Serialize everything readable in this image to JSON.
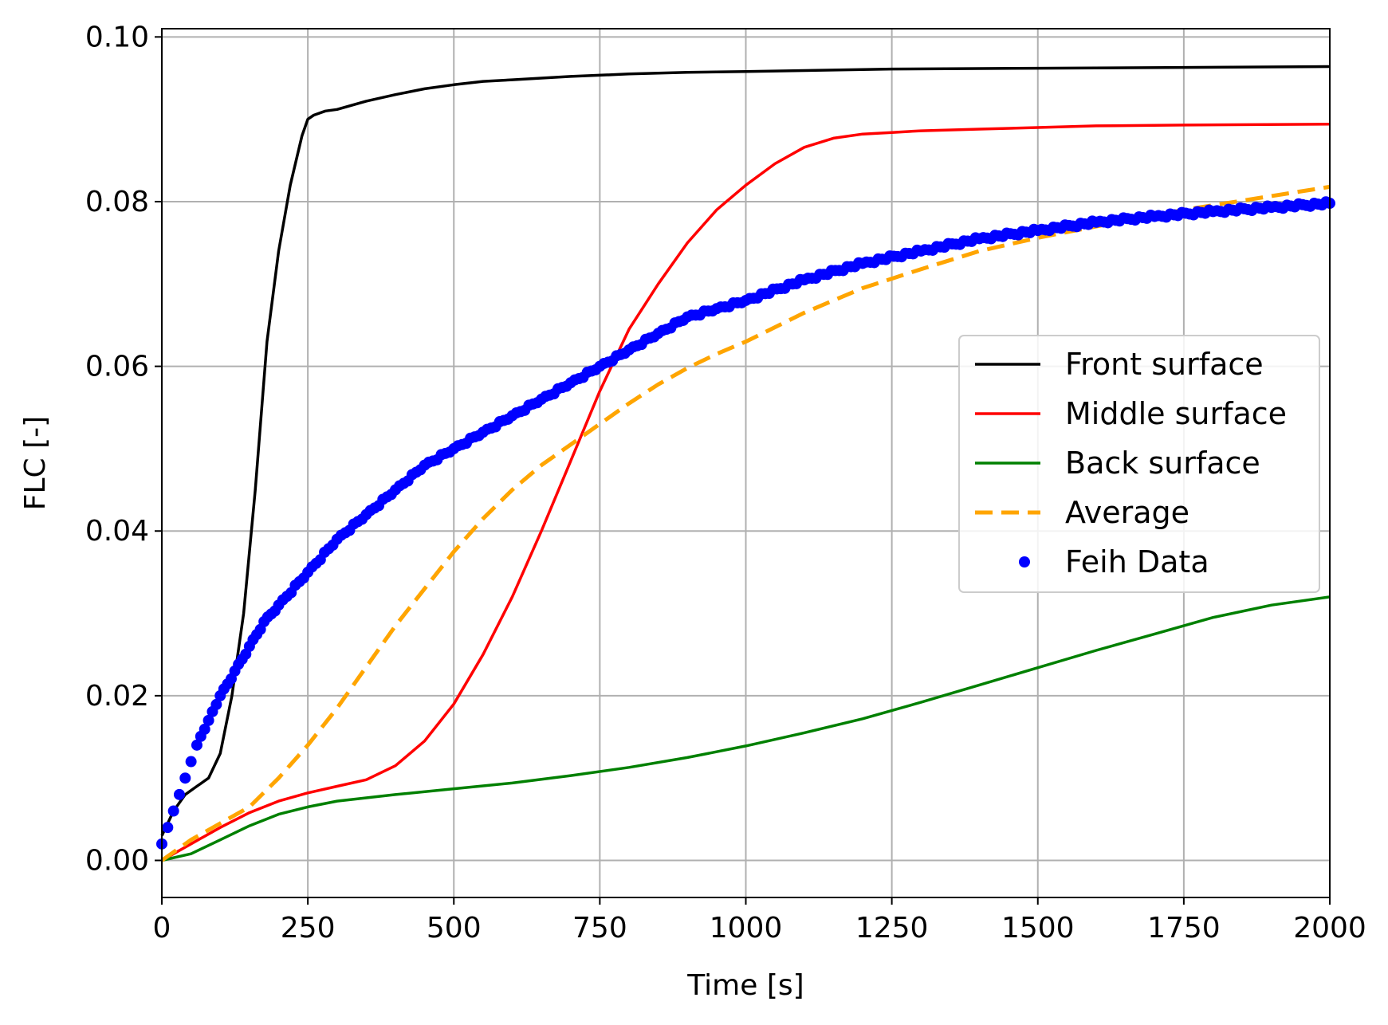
{
  "chart_data": {
    "type": "line",
    "title": "",
    "xlabel": "Time [s]",
    "ylabel": "FLC [-]",
    "xlim": [
      0,
      2000
    ],
    "ylim": [
      -0.0045,
      0.101
    ],
    "xticks": [
      0,
      250,
      500,
      750,
      1000,
      1250,
      1500,
      1750,
      2000
    ],
    "xtick_labels": [
      "0",
      "250",
      "500",
      "750",
      "1000",
      "1250",
      "1500",
      "1750",
      "2000"
    ],
    "yticks": [
      0.0,
      0.02,
      0.04,
      0.06,
      0.08,
      0.1
    ],
    "ytick_labels": [
      "0.00",
      "0.02",
      "0.04",
      "0.06",
      "0.08",
      "0.10"
    ],
    "grid": true,
    "legend_position": "center-right",
    "series": [
      {
        "name": "Front surface",
        "style": "solid",
        "color": "#000000",
        "x": [
          0,
          20,
          40,
          60,
          80,
          100,
          120,
          140,
          160,
          180,
          200,
          220,
          240,
          250,
          260,
          280,
          300,
          350,
          400,
          450,
          500,
          550,
          600,
          650,
          700,
          800,
          900,
          1000,
          1250,
          1500,
          1750,
          2000
        ],
        "y": [
          0.003,
          0.006,
          0.008,
          0.009,
          0.01,
          0.013,
          0.02,
          0.03,
          0.045,
          0.063,
          0.074,
          0.082,
          0.088,
          0.09,
          0.0905,
          0.091,
          0.0912,
          0.0922,
          0.093,
          0.0937,
          0.0942,
          0.0946,
          0.0948,
          0.095,
          0.0952,
          0.0955,
          0.0957,
          0.0958,
          0.0961,
          0.0962,
          0.0963,
          0.0964
        ]
      },
      {
        "name": "Middle surface",
        "style": "solid",
        "color": "#ff0000",
        "x": [
          0,
          50,
          100,
          150,
          200,
          250,
          300,
          350,
          400,
          450,
          500,
          550,
          600,
          650,
          700,
          750,
          800,
          850,
          900,
          950,
          1000,
          1050,
          1100,
          1150,
          1200,
          1250,
          1300,
          1400,
          1500,
          1600,
          1750,
          2000
        ],
        "y": [
          0.0,
          0.002,
          0.004,
          0.0058,
          0.0072,
          0.0082,
          0.009,
          0.0098,
          0.0115,
          0.0145,
          0.019,
          0.025,
          0.032,
          0.04,
          0.0485,
          0.057,
          0.0645,
          0.07,
          0.075,
          0.079,
          0.082,
          0.0846,
          0.0866,
          0.0877,
          0.0882,
          0.0884,
          0.0886,
          0.0888,
          0.089,
          0.0892,
          0.0893,
          0.0894
        ]
      },
      {
        "name": "Back surface",
        "style": "solid",
        "color": "#008000",
        "x": [
          0,
          50,
          100,
          150,
          200,
          250,
          300,
          400,
          500,
          600,
          700,
          800,
          900,
          1000,
          1100,
          1200,
          1300,
          1400,
          1500,
          1600,
          1700,
          1800,
          1900,
          2000
        ],
        "y": [
          0.0,
          0.0008,
          0.0025,
          0.0042,
          0.0056,
          0.0065,
          0.0072,
          0.008,
          0.0087,
          0.0094,
          0.0103,
          0.0113,
          0.0125,
          0.0139,
          0.0155,
          0.0172,
          0.0192,
          0.0213,
          0.0234,
          0.0255,
          0.0275,
          0.0295,
          0.031,
          0.032
        ]
      },
      {
        "name": "Average",
        "style": "dashed",
        "color": "#ffa500",
        "x": [
          0,
          50,
          100,
          150,
          200,
          250,
          300,
          350,
          400,
          450,
          500,
          550,
          600,
          650,
          700,
          750,
          800,
          850,
          900,
          950,
          1000,
          1100,
          1200,
          1300,
          1400,
          1500,
          1600,
          1750,
          2000
        ],
        "y": [
          0.0,
          0.0025,
          0.0045,
          0.0065,
          0.01,
          0.014,
          0.0185,
          0.0235,
          0.0285,
          0.033,
          0.0375,
          0.0415,
          0.045,
          0.048,
          0.0505,
          0.053,
          0.0555,
          0.0578,
          0.0598,
          0.0615,
          0.063,
          0.0665,
          0.0695,
          0.0718,
          0.074,
          0.0756,
          0.077,
          0.079,
          0.0818
        ]
      },
      {
        "name": "Feih Data",
        "style": "dots",
        "color": "#0000ff",
        "x": [
          0,
          10,
          20,
          30,
          40,
          50,
          60,
          80,
          100,
          125,
          150,
          175,
          200,
          250,
          300,
          350,
          400,
          450,
          500,
          550,
          600,
          650,
          700,
          750,
          800,
          850,
          900,
          950,
          1000,
          1100,
          1200,
          1300,
          1400,
          1500,
          1600,
          1700,
          1800,
          1900,
          2000
        ],
        "y": [
          0.002,
          0.004,
          0.006,
          0.008,
          0.01,
          0.012,
          0.014,
          0.017,
          0.02,
          0.023,
          0.026,
          0.029,
          0.031,
          0.035,
          0.039,
          0.042,
          0.045,
          0.048,
          0.05,
          0.052,
          0.054,
          0.056,
          0.058,
          0.06,
          0.062,
          0.064,
          0.066,
          0.067,
          0.068,
          0.0705,
          0.0725,
          0.074,
          0.0755,
          0.0765,
          0.0775,
          0.0782,
          0.0788,
          0.0793,
          0.0798
        ]
      }
    ]
  }
}
